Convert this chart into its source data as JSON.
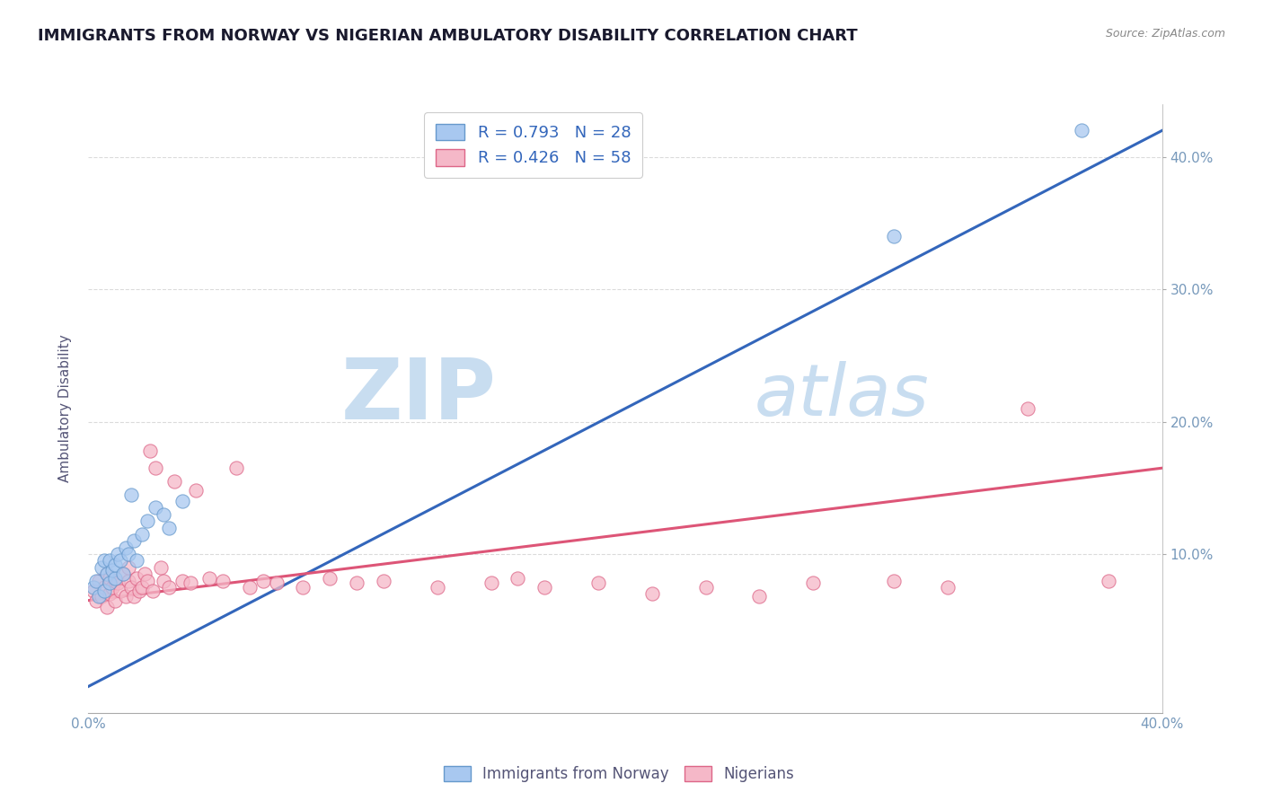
{
  "title": "IMMIGRANTS FROM NORWAY VS NIGERIAN AMBULATORY DISABILITY CORRELATION CHART",
  "source": "Source: ZipAtlas.com",
  "ylabel": "Ambulatory Disability",
  "xmin": 0.0,
  "xmax": 0.4,
  "ymin": -0.02,
  "ymax": 0.44,
  "yticks_right": [
    0.1,
    0.2,
    0.3,
    0.4
  ],
  "ytick_labels_right": [
    "10.0%",
    "20.0%",
    "30.0%",
    "40.0%"
  ],
  "xticks": [
    0.0,
    0.05,
    0.1,
    0.15,
    0.2,
    0.25,
    0.3,
    0.35,
    0.4
  ],
  "xtick_labels": [
    "0.0%",
    "",
    "",
    "",
    "",
    "",
    "",
    "",
    "40.0%"
  ],
  "blue_color": "#a8c8f0",
  "pink_color": "#f5b8c8",
  "blue_edge_color": "#6699cc",
  "pink_edge_color": "#dd6688",
  "blue_line_color": "#3366bb",
  "pink_line_color": "#dd5577",
  "legend_label_blue": "R = 0.793   N = 28",
  "legend_label_pink": "R = 0.426   N = 58",
  "blue_scatter_x": [
    0.002,
    0.003,
    0.004,
    0.005,
    0.006,
    0.006,
    0.007,
    0.008,
    0.008,
    0.009,
    0.01,
    0.01,
    0.011,
    0.012,
    0.013,
    0.014,
    0.015,
    0.016,
    0.017,
    0.018,
    0.02,
    0.022,
    0.025,
    0.028,
    0.03,
    0.035,
    0.3,
    0.37
  ],
  "blue_scatter_y": [
    0.075,
    0.08,
    0.068,
    0.09,
    0.072,
    0.095,
    0.085,
    0.078,
    0.095,
    0.088,
    0.082,
    0.092,
    0.1,
    0.095,
    0.085,
    0.105,
    0.1,
    0.145,
    0.11,
    0.095,
    0.115,
    0.125,
    0.135,
    0.13,
    0.12,
    0.14,
    0.34,
    0.42
  ],
  "pink_scatter_x": [
    0.002,
    0.003,
    0.004,
    0.005,
    0.006,
    0.007,
    0.007,
    0.008,
    0.008,
    0.009,
    0.01,
    0.01,
    0.011,
    0.012,
    0.013,
    0.014,
    0.015,
    0.015,
    0.016,
    0.017,
    0.018,
    0.019,
    0.02,
    0.021,
    0.022,
    0.023,
    0.024,
    0.025,
    0.027,
    0.028,
    0.03,
    0.032,
    0.035,
    0.038,
    0.04,
    0.045,
    0.05,
    0.055,
    0.06,
    0.065,
    0.07,
    0.08,
    0.09,
    0.1,
    0.11,
    0.13,
    0.15,
    0.16,
    0.17,
    0.19,
    0.21,
    0.23,
    0.25,
    0.27,
    0.3,
    0.32,
    0.38,
    0.35
  ],
  "pink_scatter_y": [
    0.072,
    0.065,
    0.08,
    0.068,
    0.075,
    0.06,
    0.085,
    0.07,
    0.082,
    0.075,
    0.065,
    0.08,
    0.078,
    0.072,
    0.085,
    0.068,
    0.08,
    0.09,
    0.075,
    0.068,
    0.082,
    0.072,
    0.075,
    0.085,
    0.08,
    0.178,
    0.072,
    0.165,
    0.09,
    0.08,
    0.075,
    0.155,
    0.08,
    0.078,
    0.148,
    0.082,
    0.08,
    0.165,
    0.075,
    0.08,
    0.078,
    0.075,
    0.082,
    0.078,
    0.08,
    0.075,
    0.078,
    0.082,
    0.075,
    0.078,
    0.07,
    0.075,
    0.068,
    0.078,
    0.08,
    0.075,
    0.08,
    0.21
  ],
  "watermark_zip": "ZIP",
  "watermark_atlas": "atlas",
  "watermark_color_zip": "#c8ddf0",
  "watermark_color_atlas": "#c8ddf0",
  "background_color": "#ffffff",
  "title_color": "#1a1a2e",
  "title_fontsize": 13,
  "axis_label_color": "#555577",
  "tick_label_color": "#7799bb",
  "grid_color": "#cccccc"
}
